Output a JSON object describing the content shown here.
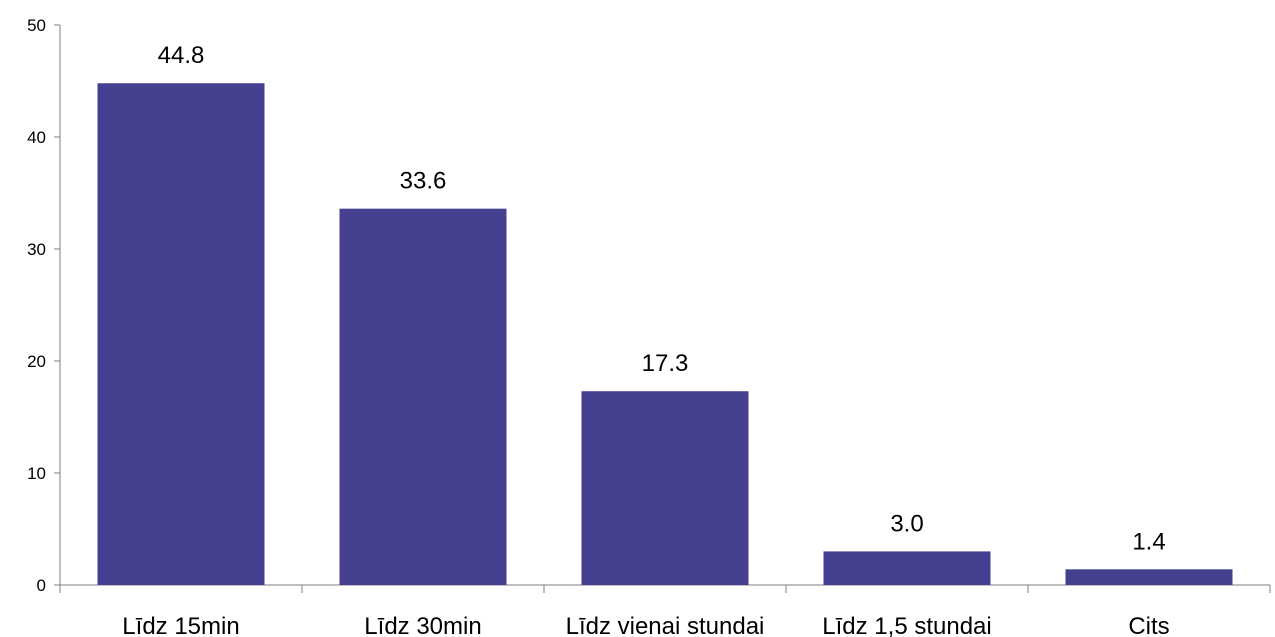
{
  "chart_data": {
    "type": "bar",
    "categories": [
      "Līdz 15min",
      "Līdz 30min",
      "Līdz vienai stundai",
      "Līdz 1,5 stundai",
      "Cits"
    ],
    "values": [
      44.8,
      33.6,
      17.3,
      3.0,
      1.4
    ],
    "data_labels": [
      "44.8",
      "33.6",
      "17.3",
      "3.0",
      "1.4"
    ],
    "yticks": [
      "0",
      "10",
      "20",
      "30",
      "40",
      "50"
    ],
    "ylim": [
      0,
      50
    ],
    "grid": false,
    "legend": "none",
    "bar_color": "#453F8F"
  }
}
